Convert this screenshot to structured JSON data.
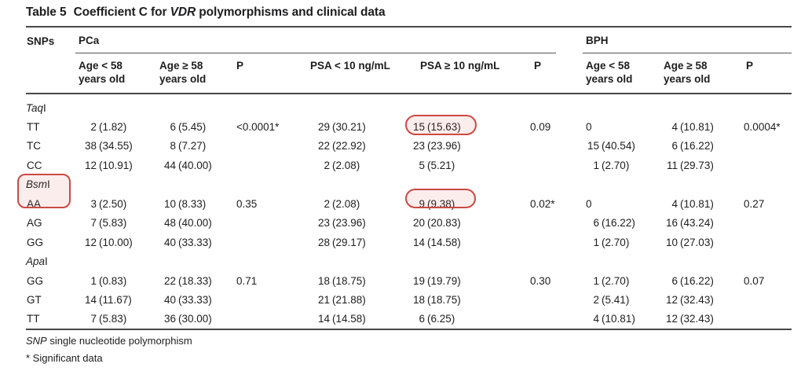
{
  "title": {
    "label": "Table 5",
    "prefix": "Coefficient C for ",
    "gene": "VDR",
    "suffix": " polymorphisms and clinical data"
  },
  "groups": {
    "snps": "SNPs",
    "pca": "PCa",
    "bph": "BPH"
  },
  "columns": [
    {
      "l1": "Age < 58",
      "l2": "years old"
    },
    {
      "l1": "Age ≥ 58",
      "l2": "years old"
    },
    {
      "l1": "P",
      "l2": ""
    },
    {
      "l1": "PSA < 10 ng/mL",
      "l2": ""
    },
    {
      "l1": "PSA ≥ 10 ng/mL",
      "l2": ""
    },
    {
      "l1": "P",
      "l2": ""
    },
    {
      "l1": "Age < 58",
      "l2": "years old"
    },
    {
      "l1": "Age ≥ 58",
      "l2": "years old"
    },
    {
      "l1": "P",
      "l2": ""
    }
  ],
  "rows": [
    {
      "type": "section",
      "it": "Taq",
      "ro": "I"
    },
    {
      "type": "data",
      "label": "TT",
      "cells": [
        {
          "n": "2",
          "p": "(1.82)"
        },
        {
          "n": "6",
          "p": "(5.45)"
        },
        {
          "t": "<0.0001*"
        },
        {
          "n": "29",
          "p": "(30.21)"
        },
        {
          "n": "15",
          "p": "(15.63)"
        },
        {
          "t": "0.09"
        },
        {
          "t": "0"
        },
        {
          "n": "4",
          "p": "(10.81)"
        },
        {
          "t": "0.0004*"
        }
      ]
    },
    {
      "type": "data",
      "label": "TC",
      "cells": [
        {
          "n": "38",
          "p": "(34.55)"
        },
        {
          "n": "8",
          "p": "(7.27)"
        },
        null,
        {
          "n": "22",
          "p": "(22.92)"
        },
        {
          "n": "23",
          "p": "(23.96)"
        },
        null,
        {
          "n": "15",
          "p": "(40.54)"
        },
        {
          "n": "6",
          "p": "(16.22)"
        },
        null
      ]
    },
    {
      "type": "data",
      "label": "CC",
      "cells": [
        {
          "n": "12",
          "p": "(10.91)"
        },
        {
          "n": "44",
          "p": "(40.00)"
        },
        null,
        {
          "n": "2",
          "p": "(2.08)"
        },
        {
          "n": "5",
          "p": "(5.21)"
        },
        null,
        {
          "n": "1",
          "p": "(2.70)"
        },
        {
          "n": "11",
          "p": "(29.73)"
        },
        null
      ]
    },
    {
      "type": "section",
      "it": "Bsm",
      "ro": "I"
    },
    {
      "type": "data",
      "label": "AA",
      "cells": [
        {
          "n": "3",
          "p": "(2.50)"
        },
        {
          "n": "10",
          "p": "(8.33)"
        },
        {
          "t": "0.35"
        },
        {
          "n": "2",
          "p": "(2.08)"
        },
        {
          "n": "9",
          "p": "(9.38)"
        },
        {
          "t": "0.02*"
        },
        {
          "t": "0"
        },
        {
          "n": "4",
          "p": "(10.81)"
        },
        {
          "t": "0.27"
        }
      ]
    },
    {
      "type": "data",
      "label": "AG",
      "cells": [
        {
          "n": "7",
          "p": "(5.83)"
        },
        {
          "n": "48",
          "p": "(40.00)"
        },
        null,
        {
          "n": "23",
          "p": "(23.96)"
        },
        {
          "n": "20",
          "p": "(20.83)"
        },
        null,
        {
          "n": "6",
          "p": "(16.22)"
        },
        {
          "n": "16",
          "p": "(43.24)"
        },
        null
      ]
    },
    {
      "type": "data",
      "label": "GG",
      "cells": [
        {
          "n": "12",
          "p": "(10.00)"
        },
        {
          "n": "40",
          "p": "(33.33)"
        },
        null,
        {
          "n": "28",
          "p": "(29.17)"
        },
        {
          "n": "14",
          "p": "(14.58)"
        },
        null,
        {
          "n": "1",
          "p": "(2.70)"
        },
        {
          "n": "10",
          "p": "(27.03)"
        },
        null
      ]
    },
    {
      "type": "section",
      "it": "Apa",
      "ro": "I"
    },
    {
      "type": "data",
      "label": "GG",
      "cells": [
        {
          "n": "1",
          "p": "(0.83)"
        },
        {
          "n": "22",
          "p": "(18.33)"
        },
        {
          "t": "0.71"
        },
        {
          "n": "18",
          "p": "(18.75)"
        },
        {
          "n": "19",
          "p": "(19.79)"
        },
        {
          "t": "0.30"
        },
        {
          "n": "1",
          "p": "(2.70)"
        },
        {
          "n": "6",
          "p": "(16.22)"
        },
        {
          "t": "0.07"
        }
      ]
    },
    {
      "type": "data",
      "label": "GT",
      "cells": [
        {
          "n": "14",
          "p": "(11.67)"
        },
        {
          "n": "40",
          "p": "(33.33)"
        },
        null,
        {
          "n": "21",
          "p": "(21.88)"
        },
        {
          "n": "18",
          "p": "(18.75)"
        },
        null,
        {
          "n": "2",
          "p": "(5.41)"
        },
        {
          "n": "12",
          "p": "(32.43)"
        },
        null
      ]
    },
    {
      "type": "data",
      "label": "TT",
      "cells": [
        {
          "n": "7",
          "p": "(5.83)"
        },
        {
          "n": "36",
          "p": "(30.00)"
        },
        null,
        {
          "n": "14",
          "p": "(14.58)"
        },
        {
          "n": "6",
          "p": "(6.25)"
        },
        null,
        {
          "n": "4",
          "p": "(10.81)"
        },
        {
          "n": "12",
          "p": "(32.43)"
        },
        null
      ]
    }
  ],
  "footnotes": {
    "abbr_italic": "SNP",
    "abbr_rest": " single nucleotide polymorphism",
    "significance": "* Significant data"
  },
  "annotations": [
    {
      "shape": "rounded-rect",
      "color": "#cb4a42",
      "highlights": "15 (15.63)"
    },
    {
      "shape": "rounded-rect",
      "color": "#cb4a42",
      "highlights": "BsmI AA"
    },
    {
      "shape": "rounded-rect",
      "color": "#cb4a42",
      "highlights": "9 (9.38)"
    }
  ],
  "colors": {
    "annotation": "#cb4a42",
    "rule": "#48484b",
    "text": "#1d1d1f"
  }
}
